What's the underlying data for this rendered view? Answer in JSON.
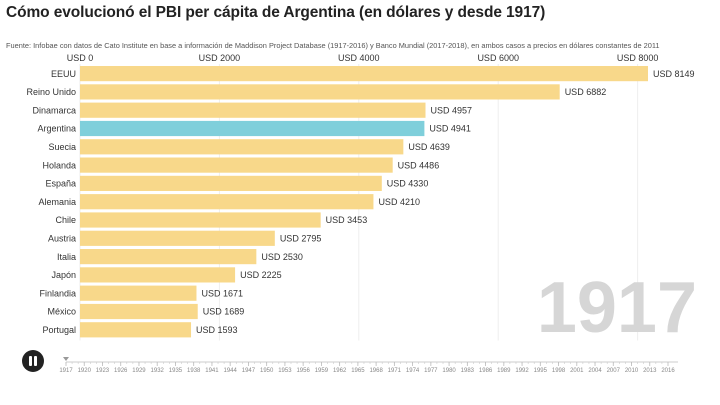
{
  "title": "Cómo evolucionó el PBI per cápita de Argentina (en dólares y desde 1917)",
  "subtitle": "Fuente: Infobae con datos de Cato Institute en base a información de Maddison Project Database (1917-2016) y Banco Mundial (2017-2018), en ambos casos a precios en dólares constantes de 2011",
  "current_year": "1917",
  "controls": {
    "play_state": "pause",
    "icon": "pause-icon"
  },
  "colors": {
    "bar": "#f8d88a",
    "highlight": "#7fcfdb",
    "grid": "#eeeeee",
    "big_year": "#d6d6d6"
  },
  "chart_data": {
    "type": "bar",
    "orientation": "horizontal",
    "title": "Cómo evolucionó el PBI per cápita de Argentina (en dólares y desde 1917)",
    "value_prefix": "USD ",
    "xlim": [
      0,
      8500
    ],
    "x_ticks": [
      0,
      2000,
      4000,
      6000,
      8000
    ],
    "x_tick_labels": [
      "USD 0",
      "USD 2000",
      "USD 4000",
      "USD 6000",
      "USD 8000"
    ],
    "grid": true,
    "highlight": "Argentina",
    "categories": [
      "EEUU",
      "Reino Unido",
      "Dinamarca",
      "Argentina",
      "Suecia",
      "Holanda",
      "España",
      "Alemania",
      "Chile",
      "Austria",
      "Italia",
      "Japón",
      "Finlandia",
      "México",
      "Portugal"
    ],
    "values": [
      8149,
      6882,
      4957,
      4941,
      4639,
      4486,
      4330,
      4210,
      3453,
      2795,
      2530,
      2225,
      1671,
      1689,
      1593
    ],
    "value_labels": [
      "USD 8149",
      "USD 6882",
      "USD 4957",
      "USD 4941",
      "USD 4639",
      "USD 4486",
      "USD 4330",
      "USD 4210",
      "USD 3453",
      "USD 2795",
      "USD 2530",
      "USD 2225",
      "USD 1671",
      "USD 1689",
      "USD 1593"
    ],
    "timeline_years": [
      "1917",
      "1920",
      "1923",
      "1926",
      "1929",
      "1932",
      "1935",
      "1938",
      "1941",
      "1944",
      "1947",
      "1950",
      "1953",
      "1956",
      "1959",
      "1962",
      "1965",
      "1968",
      "1971",
      "1974",
      "1977",
      "1980",
      "1983",
      "1986",
      "1989",
      "1992",
      "1995",
      "1998",
      "2001",
      "2004",
      "2007",
      "2010",
      "2013",
      "2016"
    ]
  }
}
